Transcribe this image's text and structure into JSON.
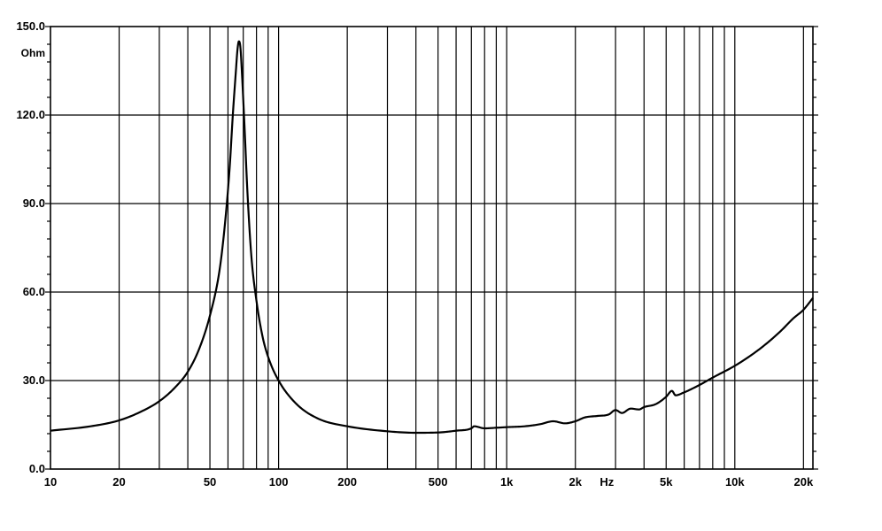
{
  "chart_data": {
    "type": "line",
    "title": "",
    "xlabel": "Hz",
    "ylabel": "Ohm",
    "x_scale": "log",
    "xlim": [
      10,
      22000
    ],
    "ylim": [
      0,
      150
    ],
    "grid": true,
    "legend": "none",
    "x_ticks": [
      {
        "value": 10,
        "label": "10"
      },
      {
        "value": 20,
        "label": "20"
      },
      {
        "value": 50,
        "label": "50"
      },
      {
        "value": 100,
        "label": "100"
      },
      {
        "value": 200,
        "label": "200"
      },
      {
        "value": 500,
        "label": "500"
      },
      {
        "value": 1000,
        "label": "1k"
      },
      {
        "value": 2000,
        "label": "2k"
      },
      {
        "value": 5000,
        "label": "5k"
      },
      {
        "value": 10000,
        "label": "10k"
      },
      {
        "value": 20000,
        "label": "20k"
      }
    ],
    "y_ticks": [
      {
        "value": 0,
        "label": "0.0"
      },
      {
        "value": 30,
        "label": "30.0"
      },
      {
        "value": 60,
        "label": "60.0"
      },
      {
        "value": 90,
        "label": "90.0"
      },
      {
        "value": 120,
        "label": "120.0"
      },
      {
        "value": 150,
        "label": "150.0"
      }
    ],
    "x_gridlines": [
      20,
      30,
      40,
      50,
      60,
      70,
      80,
      90,
      100,
      200,
      300,
      400,
      500,
      600,
      700,
      800,
      900,
      1000,
      2000,
      3000,
      4000,
      5000,
      6000,
      7000,
      8000,
      9000,
      10000,
      20000
    ],
    "series": [
      {
        "color": "#000000",
        "x": [
          10,
          15,
          20,
          25,
          30,
          35,
          40,
          45,
          50,
          55,
          58,
          61,
          63,
          65,
          66,
          67,
          68,
          69,
          71,
          73,
          76,
          80,
          85,
          90,
          100,
          120,
          150,
          200,
          300,
          400,
          500,
          600,
          700,
          720,
          800,
          900,
          1000,
          1200,
          1400,
          1600,
          1800,
          2000,
          2200,
          2500,
          2800,
          3000,
          3200,
          3500,
          3800,
          4000,
          4500,
          5000,
          5300,
          5500,
          6000,
          7000,
          8000,
          10000,
          12000,
          14000,
          16000,
          18000,
          20000,
          22000
        ],
        "y": [
          13,
          14.5,
          16.5,
          19.5,
          23,
          27.5,
          33,
          41,
          52,
          67,
          82,
          102,
          120,
          135,
          142,
          145,
          143,
          135,
          115,
          94,
          72,
          57,
          45,
          38,
          30,
          22,
          17,
          14.5,
          12.8,
          12.3,
          12.4,
          13,
          13.8,
          14.5,
          13.8,
          14,
          14.2,
          14.5,
          15.2,
          16.2,
          15.5,
          16.2,
          17.5,
          18,
          18.5,
          20,
          19,
          20.5,
          20.2,
          21,
          22,
          24.5,
          26.5,
          25,
          26,
          28.5,
          31,
          35,
          39,
          43,
          47,
          51,
          54,
          58
        ]
      }
    ]
  }
}
